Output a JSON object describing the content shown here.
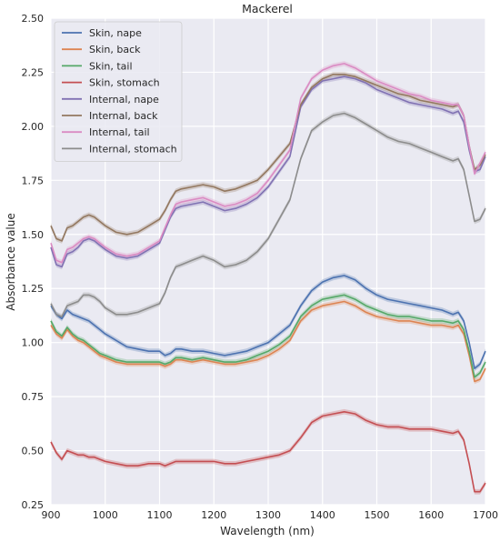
{
  "chart_data": {
    "type": "line",
    "title": "Mackerel",
    "xlabel": "Wavelength (nm)",
    "ylabel": "Absorbance value",
    "xlim": [
      900,
      1700
    ],
    "ylim": [
      0.25,
      2.5
    ],
    "xticks": [
      900,
      1000,
      1100,
      1200,
      1300,
      1400,
      1500,
      1600,
      1700
    ],
    "yticks": [
      "0.25",
      "0.50",
      "0.75",
      "1.00",
      "1.25",
      "1.50",
      "1.75",
      "2.00",
      "2.25",
      "2.50"
    ],
    "grid": true,
    "legend_position": "upper-left",
    "x": [
      900,
      910,
      920,
      930,
      940,
      950,
      960,
      970,
      980,
      990,
      1000,
      1020,
      1040,
      1060,
      1080,
      1100,
      1110,
      1120,
      1130,
      1140,
      1160,
      1180,
      1200,
      1220,
      1240,
      1260,
      1280,
      1300,
      1320,
      1340,
      1360,
      1380,
      1400,
      1420,
      1440,
      1460,
      1480,
      1500,
      1520,
      1540,
      1560,
      1580,
      1600,
      1620,
      1640,
      1650,
      1660,
      1670,
      1680,
      1690,
      1700
    ],
    "series": [
      {
        "name": "Skin, nape",
        "color": "#4c72b0",
        "values": [
          1.17,
          1.13,
          1.11,
          1.15,
          1.13,
          1.12,
          1.11,
          1.1,
          1.08,
          1.06,
          1.04,
          1.01,
          0.98,
          0.97,
          0.96,
          0.96,
          0.94,
          0.95,
          0.97,
          0.97,
          0.96,
          0.96,
          0.95,
          0.94,
          0.95,
          0.96,
          0.98,
          1.0,
          1.04,
          1.08,
          1.17,
          1.24,
          1.28,
          1.3,
          1.31,
          1.29,
          1.25,
          1.22,
          1.2,
          1.19,
          1.18,
          1.17,
          1.16,
          1.15,
          1.13,
          1.14,
          1.1,
          1.0,
          0.88,
          0.9,
          0.96
        ]
      },
      {
        "name": "Skin, back",
        "color": "#dd8452",
        "values": [
          1.08,
          1.04,
          1.02,
          1.06,
          1.03,
          1.01,
          1.0,
          0.98,
          0.96,
          0.94,
          0.93,
          0.91,
          0.9,
          0.9,
          0.9,
          0.9,
          0.89,
          0.9,
          0.92,
          0.92,
          0.91,
          0.92,
          0.91,
          0.9,
          0.9,
          0.91,
          0.92,
          0.94,
          0.97,
          1.01,
          1.1,
          1.15,
          1.17,
          1.18,
          1.19,
          1.17,
          1.14,
          1.12,
          1.11,
          1.1,
          1.1,
          1.09,
          1.08,
          1.08,
          1.07,
          1.08,
          1.04,
          0.94,
          0.82,
          0.83,
          0.88
        ]
      },
      {
        "name": "Skin, tail",
        "color": "#55a868",
        "values": [
          1.1,
          1.05,
          1.03,
          1.07,
          1.04,
          1.02,
          1.01,
          0.99,
          0.97,
          0.95,
          0.94,
          0.92,
          0.91,
          0.91,
          0.91,
          0.91,
          0.9,
          0.91,
          0.93,
          0.93,
          0.92,
          0.93,
          0.92,
          0.91,
          0.91,
          0.92,
          0.94,
          0.96,
          0.99,
          1.03,
          1.12,
          1.17,
          1.2,
          1.21,
          1.22,
          1.2,
          1.17,
          1.15,
          1.13,
          1.12,
          1.12,
          1.11,
          1.1,
          1.1,
          1.09,
          1.1,
          1.06,
          0.96,
          0.84,
          0.86,
          0.91
        ]
      },
      {
        "name": "Skin, stomach",
        "color": "#c44e52",
        "values": [
          0.54,
          0.49,
          0.46,
          0.5,
          0.49,
          0.48,
          0.48,
          0.47,
          0.47,
          0.46,
          0.45,
          0.44,
          0.43,
          0.43,
          0.44,
          0.44,
          0.43,
          0.44,
          0.45,
          0.45,
          0.45,
          0.45,
          0.45,
          0.44,
          0.44,
          0.45,
          0.46,
          0.47,
          0.48,
          0.5,
          0.56,
          0.63,
          0.66,
          0.67,
          0.68,
          0.67,
          0.64,
          0.62,
          0.61,
          0.61,
          0.6,
          0.6,
          0.6,
          0.59,
          0.58,
          0.59,
          0.55,
          0.44,
          0.31,
          0.31,
          0.35
        ]
      },
      {
        "name": "Internal, nape",
        "color": "#8172b3",
        "values": [
          1.44,
          1.36,
          1.35,
          1.41,
          1.42,
          1.44,
          1.47,
          1.48,
          1.47,
          1.45,
          1.43,
          1.4,
          1.39,
          1.4,
          1.43,
          1.46,
          1.52,
          1.58,
          1.62,
          1.63,
          1.64,
          1.65,
          1.63,
          1.61,
          1.62,
          1.64,
          1.67,
          1.72,
          1.79,
          1.86,
          2.09,
          2.17,
          2.21,
          2.22,
          2.23,
          2.22,
          2.2,
          2.17,
          2.15,
          2.13,
          2.11,
          2.1,
          2.09,
          2.08,
          2.06,
          2.07,
          2.02,
          1.89,
          1.79,
          1.8,
          1.86
        ]
      },
      {
        "name": "Internal, back",
        "color": "#937860",
        "values": [
          1.54,
          1.48,
          1.47,
          1.53,
          1.54,
          1.56,
          1.58,
          1.59,
          1.58,
          1.56,
          1.54,
          1.51,
          1.5,
          1.51,
          1.54,
          1.57,
          1.61,
          1.66,
          1.7,
          1.71,
          1.72,
          1.73,
          1.72,
          1.7,
          1.71,
          1.73,
          1.75,
          1.8,
          1.86,
          1.92,
          2.1,
          2.18,
          2.22,
          2.24,
          2.24,
          2.23,
          2.21,
          2.19,
          2.17,
          2.15,
          2.14,
          2.12,
          2.11,
          2.1,
          2.09,
          2.1,
          2.05,
          1.91,
          1.8,
          1.82,
          1.87
        ]
      },
      {
        "name": "Internal, tail",
        "color": "#da8bc3",
        "values": [
          1.46,
          1.38,
          1.37,
          1.43,
          1.44,
          1.46,
          1.48,
          1.49,
          1.48,
          1.46,
          1.44,
          1.41,
          1.4,
          1.41,
          1.44,
          1.47,
          1.53,
          1.59,
          1.64,
          1.65,
          1.66,
          1.67,
          1.65,
          1.63,
          1.64,
          1.66,
          1.69,
          1.75,
          1.82,
          1.89,
          2.13,
          2.22,
          2.26,
          2.28,
          2.29,
          2.27,
          2.24,
          2.21,
          2.19,
          2.17,
          2.15,
          2.14,
          2.12,
          2.11,
          2.1,
          2.1,
          2.05,
          1.91,
          1.78,
          1.83,
          1.88
        ]
      },
      {
        "name": "Internal, stomach",
        "color": "#8c8c8c",
        "values": [
          1.18,
          1.13,
          1.12,
          1.17,
          1.18,
          1.19,
          1.22,
          1.22,
          1.21,
          1.19,
          1.16,
          1.13,
          1.13,
          1.14,
          1.16,
          1.18,
          1.23,
          1.3,
          1.35,
          1.36,
          1.38,
          1.4,
          1.38,
          1.35,
          1.36,
          1.38,
          1.42,
          1.48,
          1.57,
          1.66,
          1.85,
          1.98,
          2.02,
          2.05,
          2.06,
          2.04,
          2.01,
          1.98,
          1.95,
          1.93,
          1.92,
          1.9,
          1.88,
          1.86,
          1.84,
          1.85,
          1.8,
          1.68,
          1.56,
          1.57,
          1.62
        ]
      }
    ]
  }
}
